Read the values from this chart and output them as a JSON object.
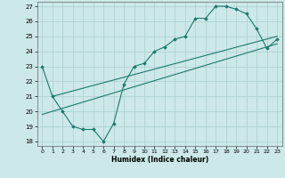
{
  "xlabel": "Humidex (Indice chaleur)",
  "ylabel": "",
  "xlim": [
    -0.5,
    23.5
  ],
  "ylim": [
    17.7,
    27.3
  ],
  "yticks": [
    18,
    19,
    20,
    21,
    22,
    23,
    24,
    25,
    26,
    27
  ],
  "xticks": [
    0,
    1,
    2,
    3,
    4,
    5,
    6,
    7,
    8,
    9,
    10,
    11,
    12,
    13,
    14,
    15,
    16,
    17,
    18,
    19,
    20,
    21,
    22,
    23
  ],
  "bg_color": "#cce8e8",
  "line_color": "#1a7a6e",
  "grid_color": "#aacfcf",
  "marker_line": {
    "x": [
      0,
      1,
      2,
      3,
      4,
      5,
      6,
      7,
      8,
      9,
      10,
      11,
      12,
      13,
      14,
      15,
      16,
      17,
      18,
      19,
      20,
      21,
      22,
      23
    ],
    "y": [
      23,
      21,
      20,
      19,
      18.8,
      18.8,
      18,
      19.2,
      21.8,
      23.0,
      23.2,
      24.0,
      24.3,
      24.8,
      25.0,
      26.2,
      26.2,
      27.0,
      27.0,
      26.8,
      26.5,
      25.5,
      24.2,
      24.8
    ]
  },
  "line1": {
    "x": [
      0,
      23
    ],
    "y": [
      19.8,
      24.5
    ]
  },
  "line2": {
    "x": [
      1,
      23
    ],
    "y": [
      21.0,
      25.0
    ]
  }
}
